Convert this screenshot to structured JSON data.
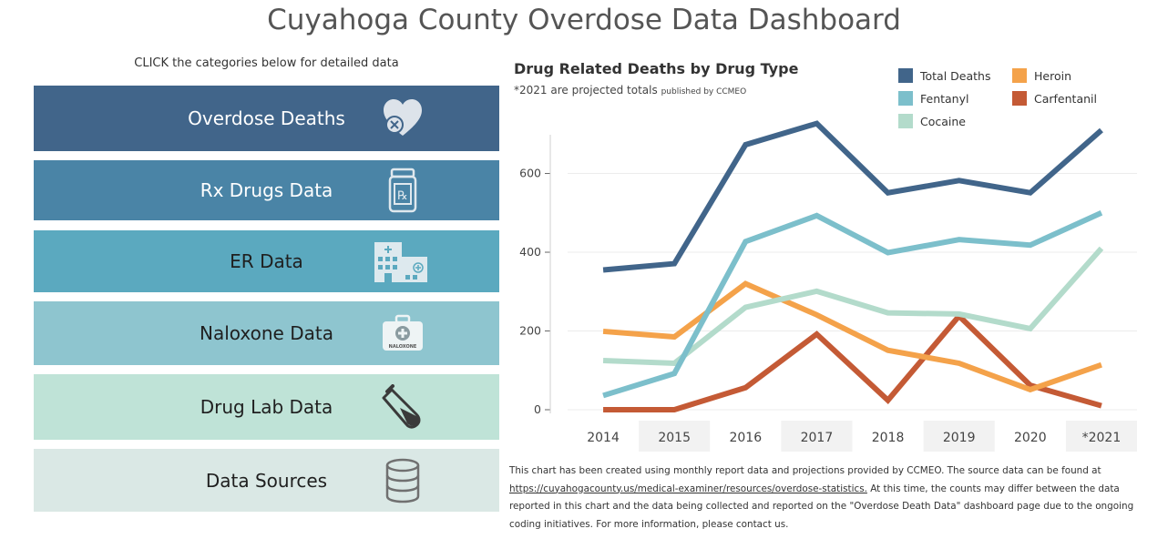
{
  "page": {
    "title": "Cuyahoga County Overdose Data Dashboard",
    "instruction": "CLICK the categories below for detailed data"
  },
  "categories": [
    {
      "label": "Overdose Deaths",
      "icon": "heart-x-icon",
      "bg": "#41658a",
      "fg": "#ffffff"
    },
    {
      "label": "Rx Drugs Data",
      "icon": "pill-bottle-icon",
      "bg": "#4a84a6",
      "fg": "#ffffff"
    },
    {
      "label": "ER Data",
      "icon": "hospital-icon",
      "bg": "#5ba9bf",
      "fg": "#1f1f1f"
    },
    {
      "label": "Naloxone Data",
      "icon": "naloxone-kit-icon",
      "bg": "#8ec5cf",
      "fg": "#1f1f1f"
    },
    {
      "label": "Drug Lab Data",
      "icon": "test-tube-icon",
      "bg": "#bfe3d7",
      "fg": "#1f1f1f"
    },
    {
      "label": "Data Sources",
      "icon": "database-icon",
      "bg": "#dae8e5",
      "fg": "#1f1f1f"
    }
  ],
  "naloxone_icon_text": "NALOXONE",
  "chart": {
    "title": "Drug Related Deaths by Drug Type",
    "subtitle": "*2021 are projected totals",
    "subtitle_small": "published by CCMEO"
  },
  "chart_data": {
    "type": "line",
    "title": "Drug Related Deaths by Drug Type",
    "x": [
      "2014",
      "2015",
      "2016",
      "2017",
      "2018",
      "2019",
      "2020",
      "*2021"
    ],
    "ylim": [
      0,
      740
    ],
    "yticks": [
      0,
      200,
      400,
      600
    ],
    "grid": true,
    "legend_position": "top-right",
    "series": [
      {
        "name": "Total Deaths",
        "color": "#41658a",
        "values": [
          355,
          371,
          673,
          727,
          551,
          582,
          551,
          710
        ]
      },
      {
        "name": "Fentanyl",
        "color": "#7cbfcb",
        "values": [
          36,
          92,
          427,
          493,
          399,
          432,
          418,
          500
        ]
      },
      {
        "name": "Cocaine",
        "color": "#b3dbcb",
        "values": [
          125,
          118,
          260,
          301,
          246,
          243,
          206,
          410
        ]
      },
      {
        "name": "Heroin",
        "color": "#f4a24a",
        "values": [
          199,
          185,
          320,
          241,
          151,
          118,
          51,
          114
        ]
      },
      {
        "name": "Carfentanil",
        "color": "#c45a35",
        "values": [
          0,
          0,
          56,
          192,
          24,
          238,
          62,
          10
        ]
      }
    ]
  },
  "note": {
    "line1": "This chart has been created using monthly report data and projections provided by CCMEO.  The source data can be found at",
    "link": "https://cuyahogacounty.us/medical-examiner/resources/overdose-statistics.",
    "line2_rest": "  At this time, the counts may  differ between the data",
    "line3": "reported in this chart and the data being collected and reported on the \"Overdose Death Data\" dashboard page due to the ongoing",
    "line4": "coding initiatives.  For more information, please contact us."
  }
}
